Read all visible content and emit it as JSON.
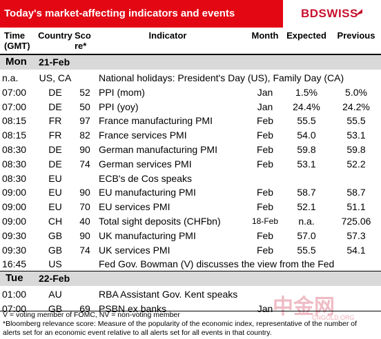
{
  "header": {
    "title": "Today's market-affecting indicators and events",
    "logo": "BDSWISS"
  },
  "columns": [
    "Time\n(GMT)",
    "Country",
    "Sco\nre*",
    "Indicator",
    "Month",
    "Expected",
    "Previous"
  ],
  "days": [
    {
      "day": "Mon",
      "date": "21-Feb",
      "rows": [
        {
          "time": "n.a.",
          "country": "US, CA",
          "indicator": "National holidays: President's Day (US), Family Day (CA)"
        },
        {
          "time": "07:00",
          "country": "DE",
          "score": "52",
          "indicator": "PPI (mom)",
          "month": "Jan",
          "expected": "1.5%",
          "previous": "5.0%"
        },
        {
          "time": "07:00",
          "country": "DE",
          "score": "50",
          "indicator": "PPI (yoy)",
          "month": "Jan",
          "expected": "24.4%",
          "previous": "24.2%"
        },
        {
          "time": "08:15",
          "country": "FR",
          "score": "97",
          "indicator": "France manufacturing PMI",
          "month": "Feb",
          "expected": "55.5",
          "previous": "55.5"
        },
        {
          "time": "08:15",
          "country": "FR",
          "score": "82",
          "indicator": "France services PMI",
          "month": "Feb",
          "expected": "54.0",
          "previous": "53.1"
        },
        {
          "time": "08:30",
          "country": "DE",
          "score": "90",
          "indicator": "German manufacturing PMI",
          "month": "Feb",
          "expected": "59.8",
          "previous": "59.8"
        },
        {
          "time": "08:30",
          "country": "DE",
          "score": "74",
          "indicator": "German services PMI",
          "month": "Feb",
          "expected": "53.1",
          "previous": "52.2"
        },
        {
          "time": "08:30",
          "country": "EU",
          "indicator": "ECB's de Cos speaks"
        },
        {
          "time": "09:00",
          "country": "EU",
          "score": "90",
          "indicator": "EU manufacturing PMI",
          "month": "Feb",
          "expected": "58.7",
          "previous": "58.7"
        },
        {
          "time": "09:00",
          "country": "EU",
          "score": "70",
          "indicator": "EU services PMI",
          "month": "Feb",
          "expected": "52.1",
          "previous": "51.1"
        },
        {
          "time": "09:00",
          "country": "CH",
          "score": "40",
          "indicator": "Total sight deposits (CHFbn)",
          "month": "18-Feb",
          "expected": "n.a.",
          "previous": "725.06"
        },
        {
          "time": "09:30",
          "country": "GB",
          "score": "90",
          "indicator": "UK manufacturing PMI",
          "month": "Feb",
          "expected": "57.0",
          "previous": "57.3"
        },
        {
          "time": "09:30",
          "country": "GB",
          "score": "74",
          "indicator": "UK services PMI",
          "month": "Feb",
          "expected": "55.5",
          "previous": "54.1"
        },
        {
          "time": "16:45",
          "country": "US",
          "indicator": "Fed Gov. Bowman (V) discusses the view from the Fed"
        }
      ]
    },
    {
      "day": "Tue",
      "date": "22-Feb",
      "rows": [
        {
          "time": "01:00",
          "country": "AU",
          "indicator": "RBA Assistant Gov. Kent speaks"
        },
        {
          "time": "07:00",
          "country": "GB",
          "score": "69",
          "indicator": "PSBN ex banks",
          "month": "Jan"
        }
      ]
    }
  ],
  "footnotes": [
    "V = voting member of FOMC, NV = non-voting member",
    "*Bloomberg relevance score:  Measure of the popularity of the economic index, representative of the number of",
    "alerts set for an economic event relative to all alerts set for all events in that country."
  ],
  "watermark": {
    "text": "中金网",
    "url": "CNGOLD.ORG"
  }
}
